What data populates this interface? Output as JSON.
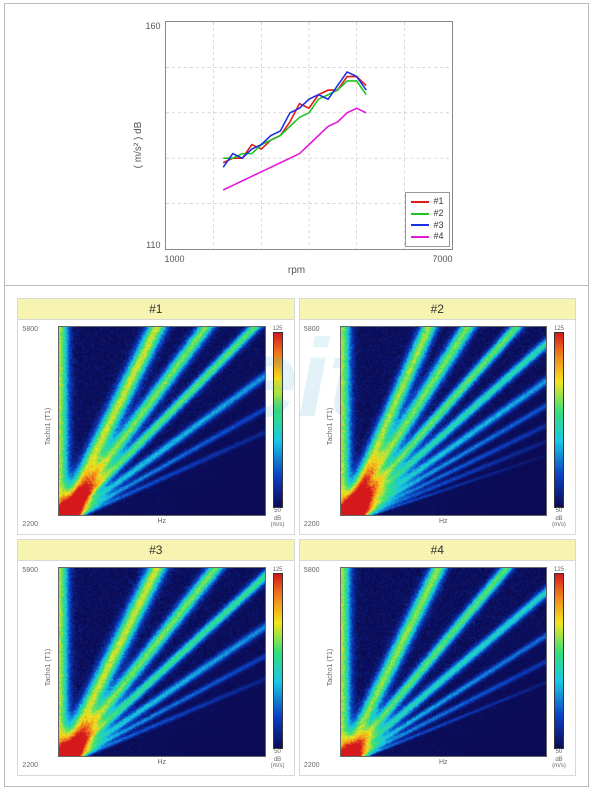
{
  "line_chart": {
    "type": "line",
    "xlabel": "rpm",
    "ylabel": "( m/s² )\ndB",
    "xlim": [
      1000,
      7000
    ],
    "ylim": [
      110,
      160
    ],
    "xticks": [
      1000,
      7000
    ],
    "yticks": [
      110,
      160
    ],
    "xtick_step_minor": 1000,
    "ytick_step_minor": 10,
    "grid_color": "#bfbfbf",
    "minor_grid_dash": "3,3",
    "axis_color": "#888888",
    "background_color": "#ffffff",
    "line_width": 1.6,
    "legend_position": "bottom-right",
    "legend_border": "#999999",
    "label_fontsize": 10,
    "tick_fontsize": 9,
    "series": [
      {
        "id": "s1",
        "label": "#1",
        "color": "#e21a1a",
        "x": [
          2200,
          2400,
          2600,
          2800,
          3000,
          3200,
          3400,
          3600,
          3800,
          4000,
          4200,
          4400,
          4600,
          4800,
          5000,
          5200
        ],
        "y": [
          129,
          130,
          130,
          133,
          132,
          134,
          135,
          138,
          142,
          141,
          144,
          145,
          145,
          148,
          148,
          146
        ]
      },
      {
        "id": "s2",
        "label": "#2",
        "color": "#1ec41e",
        "x": [
          2200,
          2400,
          2600,
          2800,
          3000,
          3200,
          3400,
          3600,
          3800,
          4000,
          4200,
          4400,
          4600,
          4800,
          5000,
          5200
        ],
        "y": [
          130,
          130,
          131,
          131,
          133,
          134,
          135,
          137,
          139,
          140,
          143,
          144,
          145,
          147,
          147,
          144
        ]
      },
      {
        "id": "s3",
        "label": "#3",
        "color": "#1a2fe2",
        "x": [
          2200,
          2400,
          2600,
          2800,
          3000,
          3200,
          3400,
          3600,
          3800,
          4000,
          4200,
          4400,
          4600,
          4800,
          5000,
          5200
        ],
        "y": [
          128,
          131,
          130,
          132,
          133,
          135,
          136,
          140,
          141,
          143,
          144,
          143,
          146,
          149,
          148,
          145
        ]
      },
      {
        "id": "s4",
        "label": "#4",
        "color": "#e21ad8",
        "x": [
          2200,
          2400,
          2600,
          2800,
          3000,
          3200,
          3400,
          3600,
          3800,
          4000,
          4200,
          4400,
          4600,
          4800,
          5000,
          5200
        ],
        "y": [
          123,
          124,
          125,
          126,
          127,
          128,
          129,
          130,
          131,
          133,
          135,
          137,
          138,
          140,
          141,
          140
        ]
      }
    ]
  },
  "spectrograms": {
    "type": "spectrogram_grid",
    "layout": [
      2,
      2
    ],
    "title_background": "#f7f3b0",
    "title_fontsize": 12,
    "xlabel": "Hz",
    "ylabel": "Tacho1 (T1)",
    "xlim": [
      0,
      8000
    ],
    "ylim": [
      2200,
      5800
    ],
    "yticks": [
      2200,
      5800
    ],
    "cbar_label": "dB\n(m/s)",
    "cbar_range": [
      50,
      125
    ],
    "colormap_stops": [
      {
        "v": 0.0,
        "c": "#0b0b55"
      },
      {
        "v": 0.18,
        "c": "#0b3fc4"
      },
      {
        "v": 0.38,
        "c": "#18c7e6"
      },
      {
        "v": 0.55,
        "c": "#34e07a"
      },
      {
        "v": 0.72,
        "c": "#f4e51c"
      },
      {
        "v": 0.88,
        "c": "#f07a1c"
      },
      {
        "v": 1.0,
        "c": "#d4181c"
      }
    ],
    "background_color": "#102068",
    "panels": [
      {
        "id": "p1",
        "title": "#1",
        "seed": 11,
        "orders": [
          {
            "slope": 1.0,
            "intensity": 0.95,
            "width": 7
          },
          {
            "slope": 1.5,
            "intensity": 0.85,
            "width": 6
          },
          {
            "slope": 2.0,
            "intensity": 0.8,
            "width": 5
          },
          {
            "slope": 2.8,
            "intensity": 0.65,
            "width": 5
          },
          {
            "slope": 3.6,
            "intensity": 0.55,
            "width": 4
          },
          {
            "slope": 4.5,
            "intensity": 0.45,
            "width": 4
          }
        ]
      },
      {
        "id": "p2",
        "title": "#2",
        "seed": 22,
        "orders": [
          {
            "slope": 0.9,
            "intensity": 0.9,
            "width": 6
          },
          {
            "slope": 1.3,
            "intensity": 0.85,
            "width": 6
          },
          {
            "slope": 1.8,
            "intensity": 0.82,
            "width": 5
          },
          {
            "slope": 2.3,
            "intensity": 0.75,
            "width": 5
          },
          {
            "slope": 2.9,
            "intensity": 0.7,
            "width": 5
          },
          {
            "slope": 3.5,
            "intensity": 0.62,
            "width": 4
          },
          {
            "slope": 4.2,
            "intensity": 0.55,
            "width": 4
          },
          {
            "slope": 5.0,
            "intensity": 0.48,
            "width": 4
          },
          {
            "slope": 6.0,
            "intensity": 0.4,
            "width": 3
          }
        ]
      },
      {
        "id": "p3",
        "title": "#3",
        "seed": 33,
        "orders": [
          {
            "slope": 1.0,
            "intensity": 0.95,
            "width": 7
          },
          {
            "slope": 1.6,
            "intensity": 0.85,
            "width": 6
          },
          {
            "slope": 2.2,
            "intensity": 0.78,
            "width": 5
          },
          {
            "slope": 3.0,
            "intensity": 0.68,
            "width": 5
          },
          {
            "slope": 3.8,
            "intensity": 0.58,
            "width": 4
          },
          {
            "slope": 4.8,
            "intensity": 0.48,
            "width": 4
          }
        ]
      },
      {
        "id": "p4",
        "title": "#4",
        "seed": 44,
        "orders": [
          {
            "slope": 1.0,
            "intensity": 0.88,
            "width": 6
          },
          {
            "slope": 1.7,
            "intensity": 0.8,
            "width": 5
          },
          {
            "slope": 2.4,
            "intensity": 0.72,
            "width": 5
          },
          {
            "slope": 3.2,
            "intensity": 0.62,
            "width": 4
          },
          {
            "slope": 4.0,
            "intensity": 0.55,
            "width": 4
          },
          {
            "slope": 5.0,
            "intensity": 0.45,
            "width": 3
          }
        ]
      }
    ]
  },
  "watermark": {
    "text": "Keit",
    "color_stops": [
      "#7fd1e8",
      "#2aa6d8",
      "#0b6aa0"
    ],
    "opacity": 0.12
  }
}
